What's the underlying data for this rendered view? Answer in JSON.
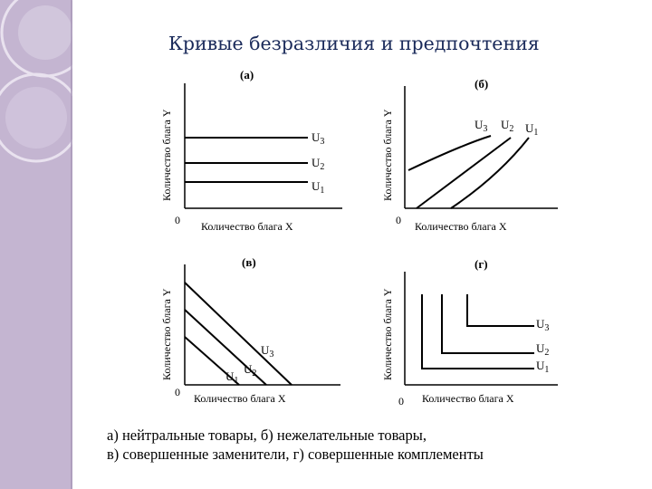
{
  "title": "Кривые безразличия и предпочтения",
  "panels": {
    "a": {
      "label": "(a)",
      "x_axis": "Количество блага X",
      "y_axis": "Количество блага Y",
      "origin": "0",
      "curves": [
        "U3",
        "U2",
        "U1"
      ]
    },
    "b": {
      "label": "(б)",
      "x_axis": "Количество блага X",
      "y_axis": "Количество блага Y",
      "origin": "0",
      "curves": [
        "U3",
        "U2",
        "U1"
      ]
    },
    "c": {
      "label": "(в)",
      "x_axis": "Количество блага X",
      "y_axis": "Количество блага Y",
      "origin": "0",
      "curves": [
        "U3",
        "U2",
        "U1"
      ]
    },
    "d": {
      "label": "(г)",
      "x_axis": "Количество блага X",
      "y_axis": "Количество блага Y",
      "origin": "0",
      "curves": [
        "U3",
        "U2",
        "U1"
      ]
    }
  },
  "caption": {
    "line1": "а) нейтральные товары, б) нежелательные товары,",
    "line2": "в) совершенные заменители, г) совершенные комплементы"
  },
  "colors": {
    "sidebar": "#c6b8d2",
    "title": "#1a2a5a"
  }
}
